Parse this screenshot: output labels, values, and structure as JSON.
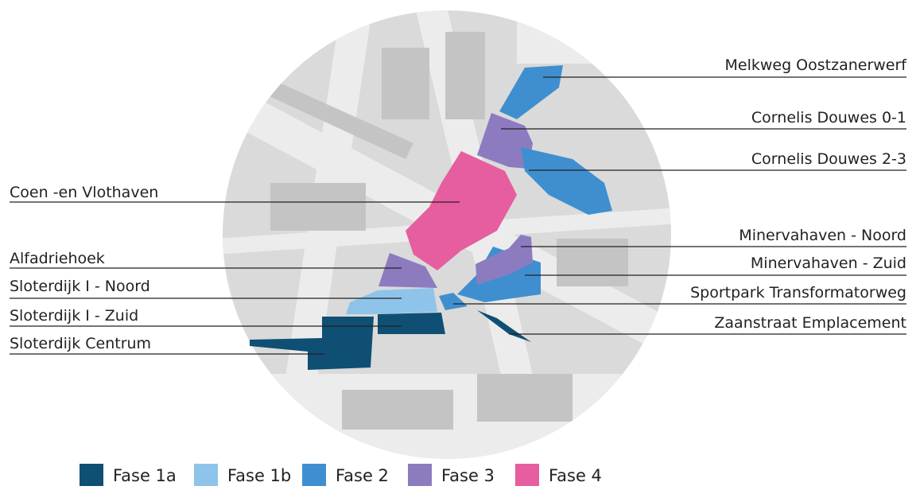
{
  "labels": [
    "Coen -en Vlothaven",
    "Alfadriehoek",
    "Sloterdijk I - Noord",
    "Sloterdijk I - Zuid",
    "Sloterdijk Centrum",
    "Melkweg Oostzanerwerf",
    "Cornelis Douwes 0-1",
    "Cornelis Douwes 2-3",
    "Minervahaven - Noord",
    "Minervahaven - Zuid",
    "Sportpark Transformatorweg",
    "Zaanstraat Emplacement"
  ],
  "legend": {
    "items": [
      {
        "label": "Fase 1a",
        "color": "#0f4f74"
      },
      {
        "label": "Fase 1b",
        "color": "#8ec4ea"
      },
      {
        "label": "Fase 2",
        "color": "#3f8fd0"
      },
      {
        "label": "Fase 3",
        "color": "#8d7bc0"
      },
      {
        "label": "Fase 4",
        "color": "#e65da0"
      }
    ]
  }
}
